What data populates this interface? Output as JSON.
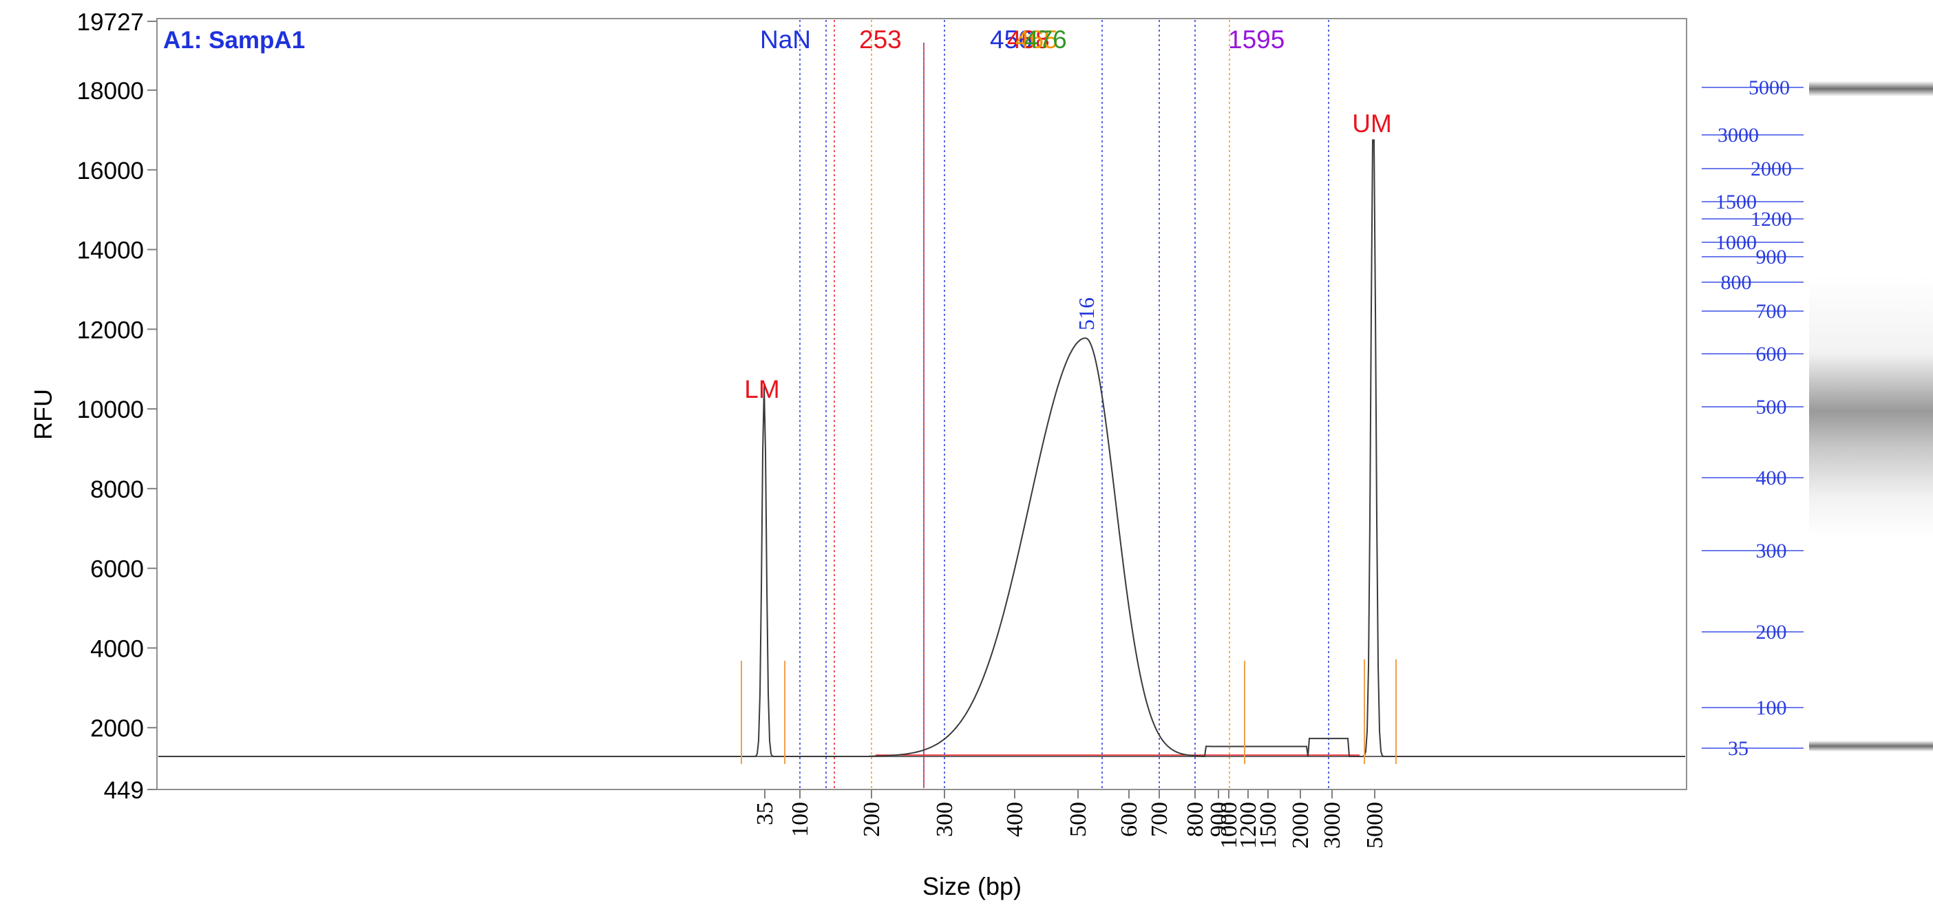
{
  "sample_label": "A1: SampA1",
  "chart_data": {
    "type": "line",
    "title": "",
    "xlabel": "Size (bp)",
    "ylabel": "RFU",
    "ylim": [
      449,
      19727
    ],
    "y_ticks": [
      449,
      2000,
      4000,
      6000,
      8000,
      10000,
      12000,
      14000,
      16000,
      18000,
      19727
    ],
    "y_tick_labels": [
      "449",
      "2000",
      "4000",
      "6000",
      "8000",
      "10000",
      "12000",
      "14000",
      "16000",
      "18000",
      "19727"
    ],
    "x_tick_labels": [
      "35",
      "100",
      "200",
      "300",
      "400",
      "500",
      "600",
      "700",
      "800",
      "900",
      "1000",
      "1200",
      "1500",
      "2000",
      "3000",
      "5000"
    ],
    "series": [
      {
        "x": [
          "35",
          "200",
          "300",
          "400",
          "500",
          "516",
          "600",
          "700",
          "800",
          "1000",
          "5000"
        ],
        "y": [
          9800,
          500,
          1800,
          5000,
          10700,
          11000,
          6500,
          2500,
          800,
          700,
          16600
        ]
      }
    ],
    "peak_labels": [
      {
        "text": "LM",
        "x": "35",
        "color": "#e8141e"
      },
      {
        "text": "516",
        "x": "516",
        "color": "#1e32dc"
      },
      {
        "text": "UM",
        "x": "5000",
        "color": "#e8141e"
      }
    ],
    "top_markers": [
      {
        "text": "NaN",
        "color": "#1e32dc"
      },
      {
        "text": "253",
        "color": "#e8141e"
      },
      {
        "text": "456",
        "color": "#1e32dc"
      },
      {
        "text": "468",
        "color": "#e8141e"
      },
      {
        "text": "465",
        "color": "#f09600"
      },
      {
        "text": "476",
        "color": "#329628"
      },
      {
        "text": "1595",
        "color": "#9614dc"
      }
    ],
    "gel_ladder": [
      "5000",
      "3000",
      "2000",
      "1500",
      "1200",
      "1000",
      "900",
      "800",
      "700",
      "600",
      "500",
      "400",
      "300",
      "200",
      "100",
      "35"
    ]
  }
}
